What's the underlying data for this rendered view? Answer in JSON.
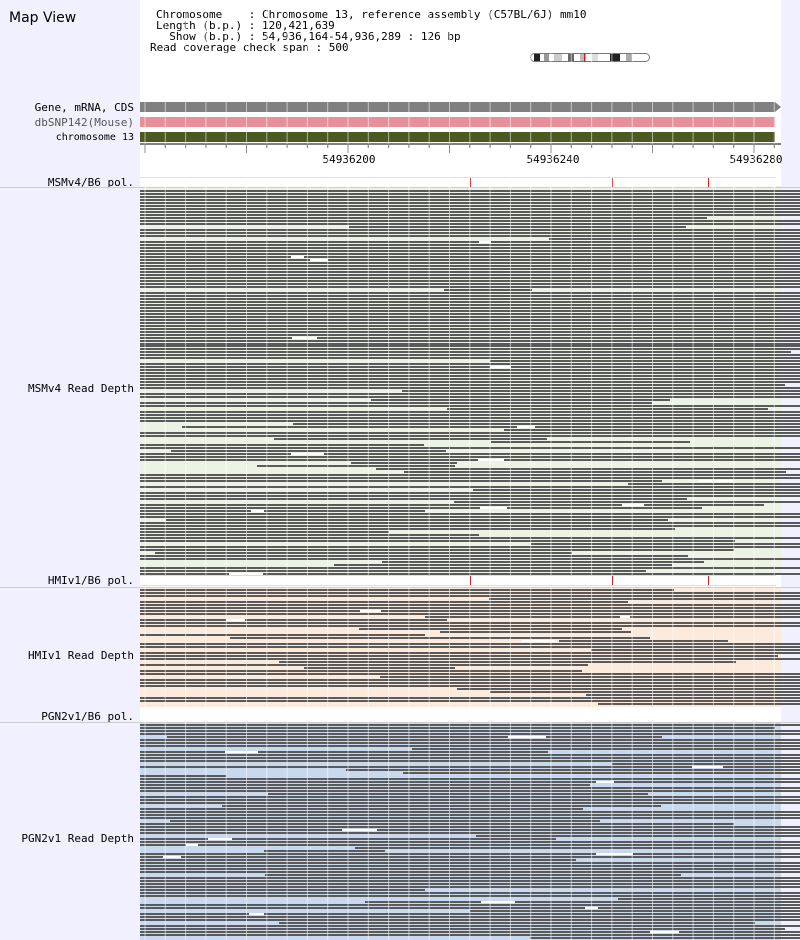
{
  "title": "Map View",
  "info": {
    "chromosome_line": "Chromosome    : Chromosome 13, reference assembly (C57BL/6J) mm10",
    "length_line": "Length (b.p.) : 120,421,639",
    "show_line": "  Show (b.p.) : 54,936,164-54,936,289 : 126 bp",
    "coverage_line": "Read coverage check span : 500"
  },
  "tracks": {
    "gene": {
      "label": "Gene, mRNA, CDS",
      "color": "#808080"
    },
    "dbsnp": {
      "label": "dbSNP142(Mouse)",
      "color": "#e8909a"
    },
    "chromosome": {
      "label": "chromosome 13",
      "color": "#4a5a20"
    }
  },
  "ruler": {
    "ticks": [
      "54936200",
      "54936240",
      "54936280"
    ]
  },
  "samples": [
    {
      "pol_label": "MSMv4/B6 pol.",
      "depth_label": "MSMv4 Read Depth",
      "bg": "#edf3e4"
    },
    {
      "pol_label": "HMIv1/B6 pol.",
      "depth_label": "HMIv1 Read Depth",
      "bg": "#fcebdc"
    },
    {
      "pol_label": "PGN2v1/B6 pol.",
      "depth_label": "PGN2v1 Read Depth",
      "bg": "#c8d8ef"
    }
  ],
  "colors": {
    "read": "#5a5a5a",
    "snp_mark": "#cc2222",
    "sidebar": "#f0f0ff"
  }
}
